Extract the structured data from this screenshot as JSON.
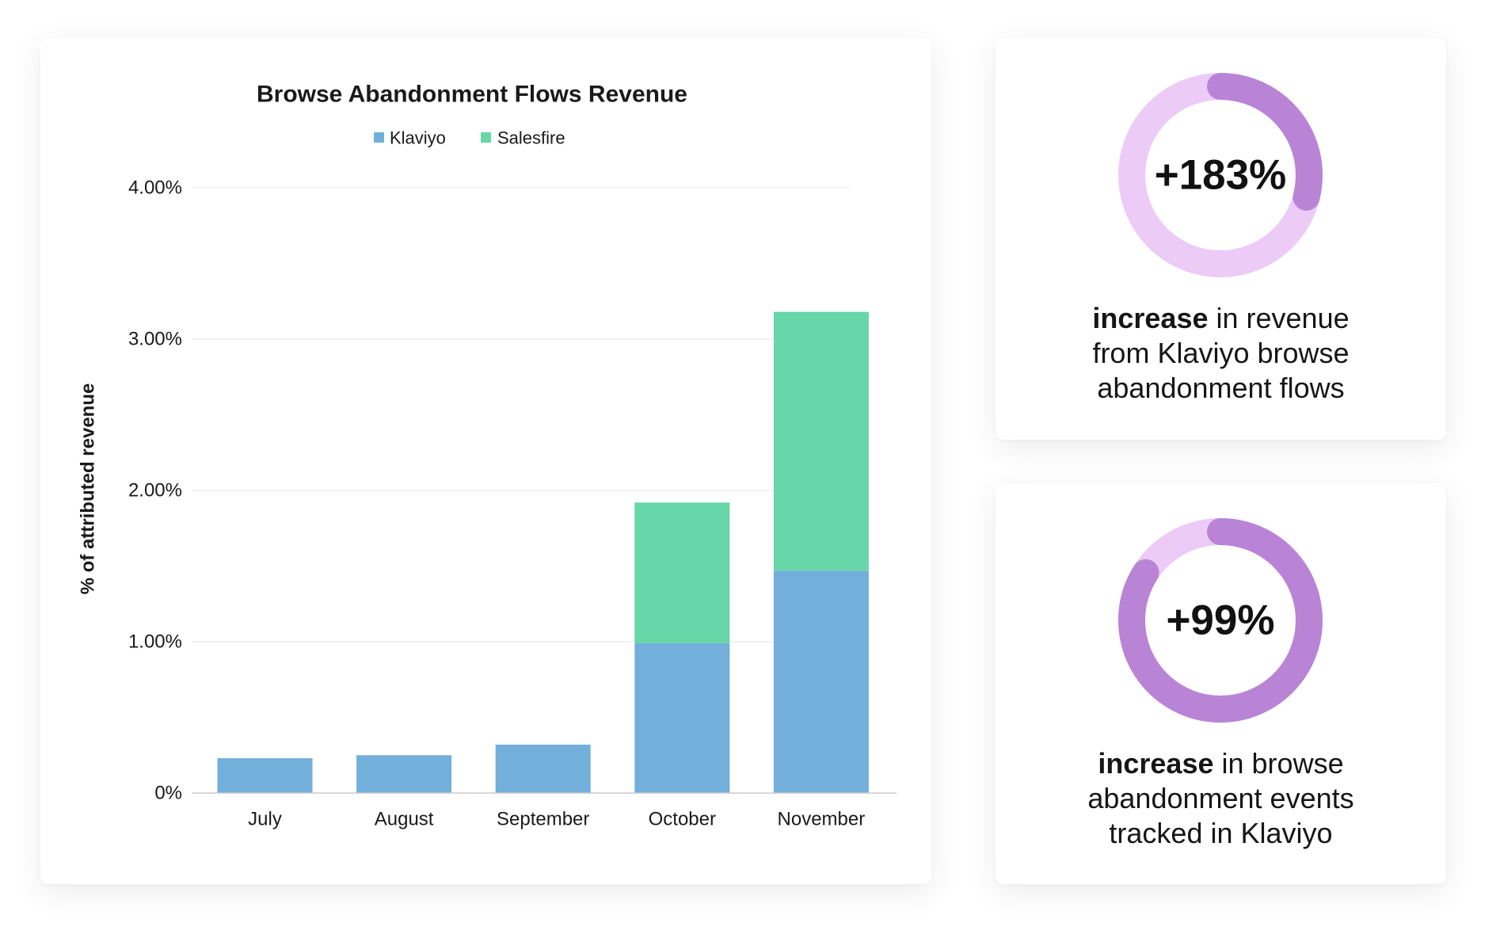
{
  "chart_data": {
    "type": "bar",
    "stacked": true,
    "title": "Browse Abandonment Flows Revenue",
    "ylabel": "% of attributed revenue",
    "categories": [
      "July",
      "August",
      "September",
      "October",
      "November"
    ],
    "series": [
      {
        "name": "Klaviyo",
        "color": "#73AFDB",
        "values": [
          0.23,
          0.25,
          0.32,
          0.99,
          1.47
        ]
      },
      {
        "name": "Salesfire",
        "color": "#67D6A8",
        "values": [
          0,
          0,
          0,
          0.93,
          1.71
        ]
      }
    ],
    "ylim": [
      0,
      4
    ],
    "yticks": [
      0,
      1,
      2,
      3,
      4
    ],
    "ytick_labels": [
      "0%",
      "1.00%",
      "2.00%",
      "3.00%",
      "4.00%"
    ],
    "grid": true,
    "legend": "top-center"
  },
  "stats": [
    {
      "value": "+183%",
      "emphasis": "increase",
      "lines": [
        "in revenue",
        "from Klaviyo browse",
        "abandonment flows"
      ],
      "arc_fraction": 0.29
    },
    {
      "value": "+99%",
      "emphasis": "increase",
      "lines": [
        "in browse",
        "abandonment events",
        "tracked in Klaviyo"
      ],
      "arc_fraction": 0.84
    }
  ],
  "colors": {
    "ring_track": "#ECCBF7",
    "ring_fill": "#B984D6",
    "grid": "#EEEEEE",
    "axis": "#CCCCCC"
  }
}
